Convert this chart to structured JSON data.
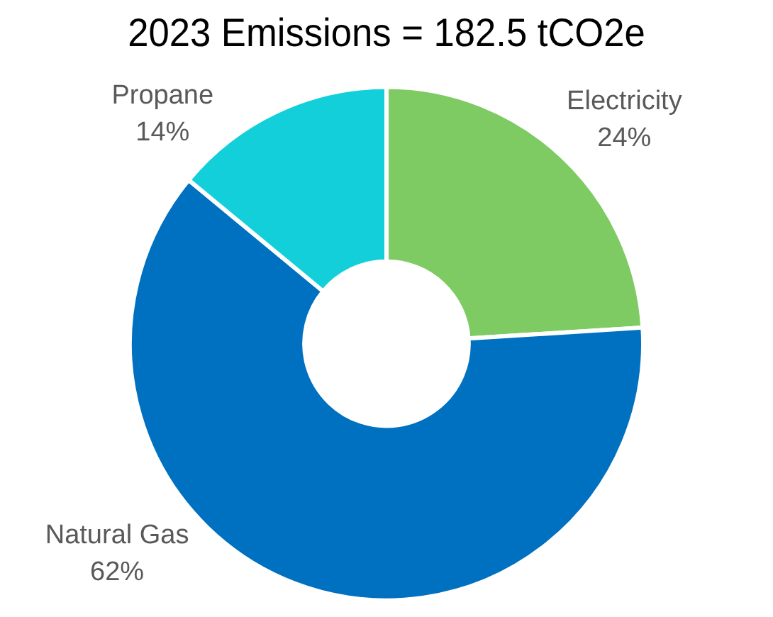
{
  "chart_data": {
    "type": "donut",
    "title": "2023 Emissions = 182.5 tCO2e",
    "categories": [
      "Electricity",
      "Natural Gas",
      "Propane"
    ],
    "values": [
      24,
      62,
      14
    ],
    "colors": [
      "#7ecb63",
      "#0070c0",
      "#12cfd9"
    ],
    "value_labels": [
      "24%",
      "62%",
      "14%"
    ],
    "legend": false
  }
}
